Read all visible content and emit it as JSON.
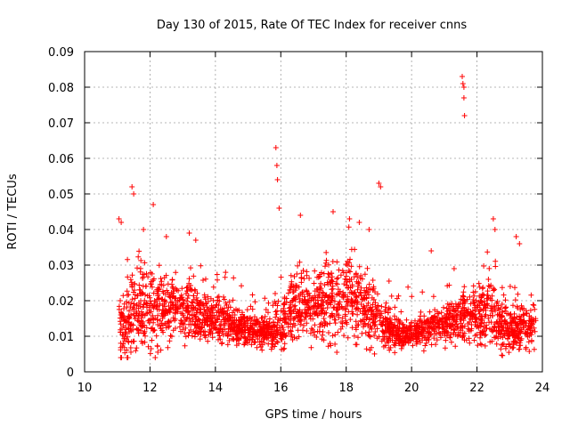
{
  "chart_data": {
    "type": "scatter",
    "title": "Day 130 of 2015, Rate Of TEC Index for receiver cnns",
    "xlabel": "GPS time / hours",
    "ylabel": "ROTI / TECUs",
    "xlim": [
      10,
      24
    ],
    "ylim": [
      0,
      0.09
    ],
    "x_ticks": [
      "10",
      "12",
      "14",
      "16",
      "18",
      "20",
      "22",
      "24"
    ],
    "y_ticks": [
      "0",
      "0.01",
      "0.02",
      "0.03",
      "0.04",
      "0.05",
      "0.06",
      "0.07",
      "0.08",
      "0.09"
    ],
    "grid": true,
    "marker": "+",
    "series_color": "#ff0000",
    "series": [
      {
        "name": "ROTI",
        "envelope": [
          {
            "x": 11.05,
            "base": 0.012,
            "spread": 0.01
          },
          {
            "x": 11.5,
            "base": 0.016,
            "spread": 0.014
          },
          {
            "x": 12.0,
            "base": 0.017,
            "spread": 0.013
          },
          {
            "x": 12.5,
            "base": 0.018,
            "spread": 0.012
          },
          {
            "x": 13.0,
            "base": 0.018,
            "spread": 0.011
          },
          {
            "x": 13.5,
            "base": 0.016,
            "spread": 0.009
          },
          {
            "x": 14.0,
            "base": 0.015,
            "spread": 0.007
          },
          {
            "x": 14.5,
            "base": 0.013,
            "spread": 0.006
          },
          {
            "x": 15.0,
            "base": 0.012,
            "spread": 0.005
          },
          {
            "x": 15.5,
            "base": 0.011,
            "spread": 0.004
          },
          {
            "x": 16.0,
            "base": 0.013,
            "spread": 0.008
          },
          {
            "x": 16.5,
            "base": 0.02,
            "spread": 0.011
          },
          {
            "x": 17.0,
            "base": 0.019,
            "spread": 0.011
          },
          {
            "x": 17.5,
            "base": 0.019,
            "spread": 0.012
          },
          {
            "x": 18.0,
            "base": 0.02,
            "spread": 0.013
          },
          {
            "x": 18.5,
            "base": 0.019,
            "spread": 0.012
          },
          {
            "x": 19.0,
            "base": 0.014,
            "spread": 0.008
          },
          {
            "x": 19.5,
            "base": 0.011,
            "spread": 0.005
          },
          {
            "x": 20.0,
            "base": 0.011,
            "spread": 0.004
          },
          {
            "x": 20.5,
            "base": 0.012,
            "spread": 0.005
          },
          {
            "x": 21.0,
            "base": 0.013,
            "spread": 0.006
          },
          {
            "x": 21.5,
            "base": 0.015,
            "spread": 0.008
          },
          {
            "x": 22.0,
            "base": 0.017,
            "spread": 0.01
          },
          {
            "x": 22.5,
            "base": 0.016,
            "spread": 0.01
          },
          {
            "x": 23.0,
            "base": 0.012,
            "spread": 0.007
          },
          {
            "x": 23.5,
            "base": 0.012,
            "spread": 0.007
          },
          {
            "x": 23.8,
            "base": 0.013,
            "spread": 0.006
          }
        ],
        "x_range": [
          11.05,
          23.8
        ],
        "point_count": 2600,
        "spikes": [
          {
            "x": 11.05,
            "y": 0.043
          },
          {
            "x": 11.12,
            "y": 0.042
          },
          {
            "x": 11.45,
            "y": 0.052
          },
          {
            "x": 11.5,
            "y": 0.05
          },
          {
            "x": 11.8,
            "y": 0.04
          },
          {
            "x": 12.1,
            "y": 0.047
          },
          {
            "x": 12.5,
            "y": 0.038
          },
          {
            "x": 13.2,
            "y": 0.039
          },
          {
            "x": 13.4,
            "y": 0.037
          },
          {
            "x": 15.85,
            "y": 0.063
          },
          {
            "x": 15.88,
            "y": 0.058
          },
          {
            "x": 15.9,
            "y": 0.054
          },
          {
            "x": 15.95,
            "y": 0.046
          },
          {
            "x": 16.6,
            "y": 0.044
          },
          {
            "x": 17.6,
            "y": 0.045
          },
          {
            "x": 18.1,
            "y": 0.043
          },
          {
            "x": 18.4,
            "y": 0.042
          },
          {
            "x": 18.7,
            "y": 0.04
          },
          {
            "x": 19.0,
            "y": 0.053
          },
          {
            "x": 19.05,
            "y": 0.052
          },
          {
            "x": 21.55,
            "y": 0.083
          },
          {
            "x": 21.57,
            "y": 0.081
          },
          {
            "x": 21.6,
            "y": 0.08
          },
          {
            "x": 21.6,
            "y": 0.077
          },
          {
            "x": 21.62,
            "y": 0.072
          },
          {
            "x": 20.6,
            "y": 0.034
          },
          {
            "x": 21.3,
            "y": 0.029
          },
          {
            "x": 22.5,
            "y": 0.043
          },
          {
            "x": 22.55,
            "y": 0.04
          },
          {
            "x": 23.2,
            "y": 0.038
          },
          {
            "x": 23.3,
            "y": 0.036
          }
        ]
      }
    ]
  }
}
